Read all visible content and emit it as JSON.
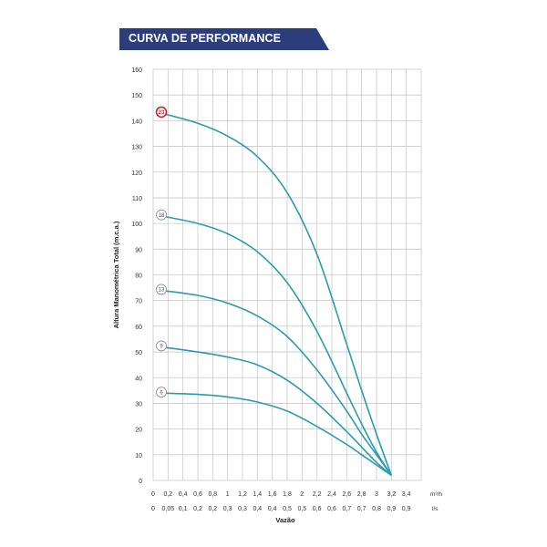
{
  "header": {
    "title": "CURVA DE PERFORMANCE",
    "banner_color": "#2b3d7a"
  },
  "chart_data": {
    "type": "line",
    "ylabel": "Altura Manométrica Total (m.c.a.)",
    "xlabel": "Vazão",
    "ylim": [
      0,
      160
    ],
    "yticks": [
      0,
      10,
      20,
      30,
      40,
      50,
      60,
      70,
      80,
      90,
      100,
      110,
      120,
      130,
      140,
      150,
      160
    ],
    "xlim": [
      0,
      3.6
    ],
    "x_ticks_m3h": [
      "0",
      "0,2",
      "0,4",
      "0,6",
      "0,8",
      "1",
      "1,2",
      "1,4",
      "1,6",
      "1,8",
      "2",
      "2,2",
      "2,4",
      "2,6",
      "2,8",
      "3",
      "3,2",
      "3,4"
    ],
    "x_ticks_ls": [
      "0",
      "0,05",
      "0,1",
      "0,2",
      "0,2",
      "0,3",
      "0,3",
      "0,4",
      "0,4",
      "0,5",
      "0,5",
      "0,6",
      "0,6",
      "0,7",
      "0,7",
      "0,8",
      "0,9",
      "0,9"
    ],
    "x_unit_m3h": "m³/h",
    "x_unit_ls": "l/s",
    "grid": true,
    "line_color": "#2a9bb0",
    "highlight_color": "#c0272d",
    "series": [
      {
        "name": "23",
        "highlighted": true,
        "x": [
          0.1,
          0.6,
          1.0,
          1.4,
          1.8,
          2.2,
          2.6,
          2.8,
          3.0,
          3.2
        ],
        "y": [
          143,
          139,
          134,
          126,
          112,
          88,
          53,
          35,
          18,
          2
        ]
      },
      {
        "name": "18",
        "highlighted": false,
        "x": [
          0.1,
          0.6,
          1.0,
          1.4,
          1.8,
          2.2,
          2.6,
          2.8,
          3.0,
          3.2
        ],
        "y": [
          103,
          100,
          96,
          89,
          77,
          58,
          34,
          22,
          11,
          2
        ]
      },
      {
        "name": "13",
        "highlighted": false,
        "x": [
          0.1,
          0.6,
          1.0,
          1.4,
          1.8,
          2.2,
          2.6,
          2.8,
          3.0,
          3.2
        ],
        "y": [
          74,
          72,
          69,
          64,
          56,
          43,
          27,
          18,
          10,
          2
        ]
      },
      {
        "name": "9",
        "highlighted": false,
        "x": [
          0.1,
          0.6,
          1.0,
          1.4,
          1.8,
          2.2,
          2.6,
          2.8,
          3.0,
          3.2
        ],
        "y": [
          52,
          50,
          48,
          45,
          39,
          30,
          19,
          13,
          7,
          2
        ]
      },
      {
        "name": "6",
        "highlighted": false,
        "x": [
          0.1,
          0.6,
          1.0,
          1.4,
          1.8,
          2.2,
          2.6,
          2.8,
          3.0,
          3.2
        ],
        "y": [
          34,
          33.5,
          32.5,
          30.5,
          27,
          21,
          14,
          10,
          6,
          2
        ]
      }
    ]
  }
}
